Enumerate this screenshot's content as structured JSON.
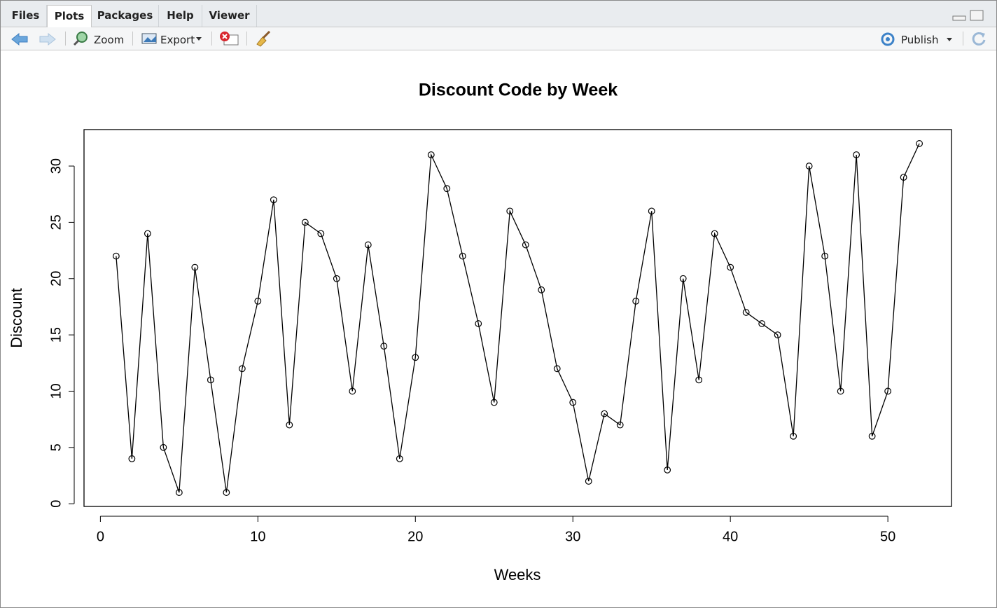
{
  "tabs": [
    "Files",
    "Plots",
    "Packages",
    "Help",
    "Viewer"
  ],
  "active_tab": "Plots",
  "toolbar": {
    "zoom": "Zoom",
    "export": "Export",
    "publish": "Publish"
  },
  "chart_data": {
    "type": "line",
    "title": "Discount Code by Week",
    "x_label": "Weeks",
    "y_label": "Discount",
    "x": [
      1,
      2,
      3,
      4,
      5,
      6,
      7,
      8,
      9,
      10,
      11,
      12,
      13,
      14,
      15,
      16,
      17,
      18,
      19,
      20,
      21,
      22,
      23,
      24,
      25,
      26,
      27,
      28,
      29,
      30,
      31,
      32,
      33,
      34,
      35,
      36,
      37,
      38,
      39,
      40,
      41,
      42,
      43,
      44,
      45,
      46,
      47,
      48,
      49,
      50,
      51,
      52
    ],
    "values": [
      22,
      4,
      24,
      5,
      1,
      21,
      11,
      1,
      12,
      18,
      27,
      7,
      25,
      24,
      20,
      10,
      23,
      14,
      4,
      13,
      31,
      28,
      22,
      16,
      9,
      26,
      23,
      19,
      12,
      9,
      2,
      8,
      7,
      18,
      26,
      3,
      20,
      11,
      24,
      21,
      17,
      16,
      15,
      6,
      30,
      22,
      10,
      31,
      6,
      10,
      29,
      32
    ],
    "color": "#000000",
    "markers": "open-circle",
    "xlim": [
      -1.04,
      54.04
    ],
    "ylim": [
      -0.24,
      33.24
    ],
    "xticks": [
      0,
      10,
      20,
      30,
      40,
      50
    ],
    "yticks": [
      0,
      5,
      10,
      15,
      20,
      25,
      30
    ]
  }
}
